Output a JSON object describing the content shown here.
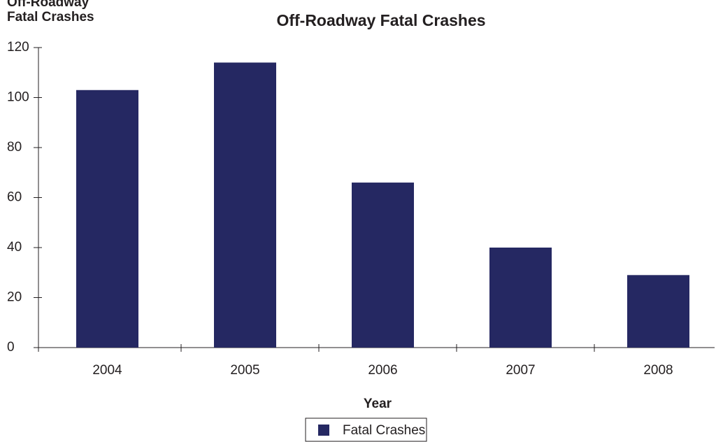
{
  "chart_data": {
    "type": "bar",
    "title": "Off-Roadway Fatal Crashes",
    "y_label": [
      "Off-Roadway",
      "Fatal Crashes"
    ],
    "x_label": "Year",
    "categories": [
      "2004",
      "2005",
      "2006",
      "2007",
      "2008"
    ],
    "series": [
      {
        "name": "Fatal Crashes",
        "color": "#252862",
        "values": [
          103,
          114,
          66,
          40,
          29
        ]
      }
    ],
    "ylim": [
      0,
      120
    ],
    "yticks": [
      0,
      20,
      40,
      60,
      80,
      100,
      120
    ],
    "grid": false,
    "legend": "bottom"
  }
}
